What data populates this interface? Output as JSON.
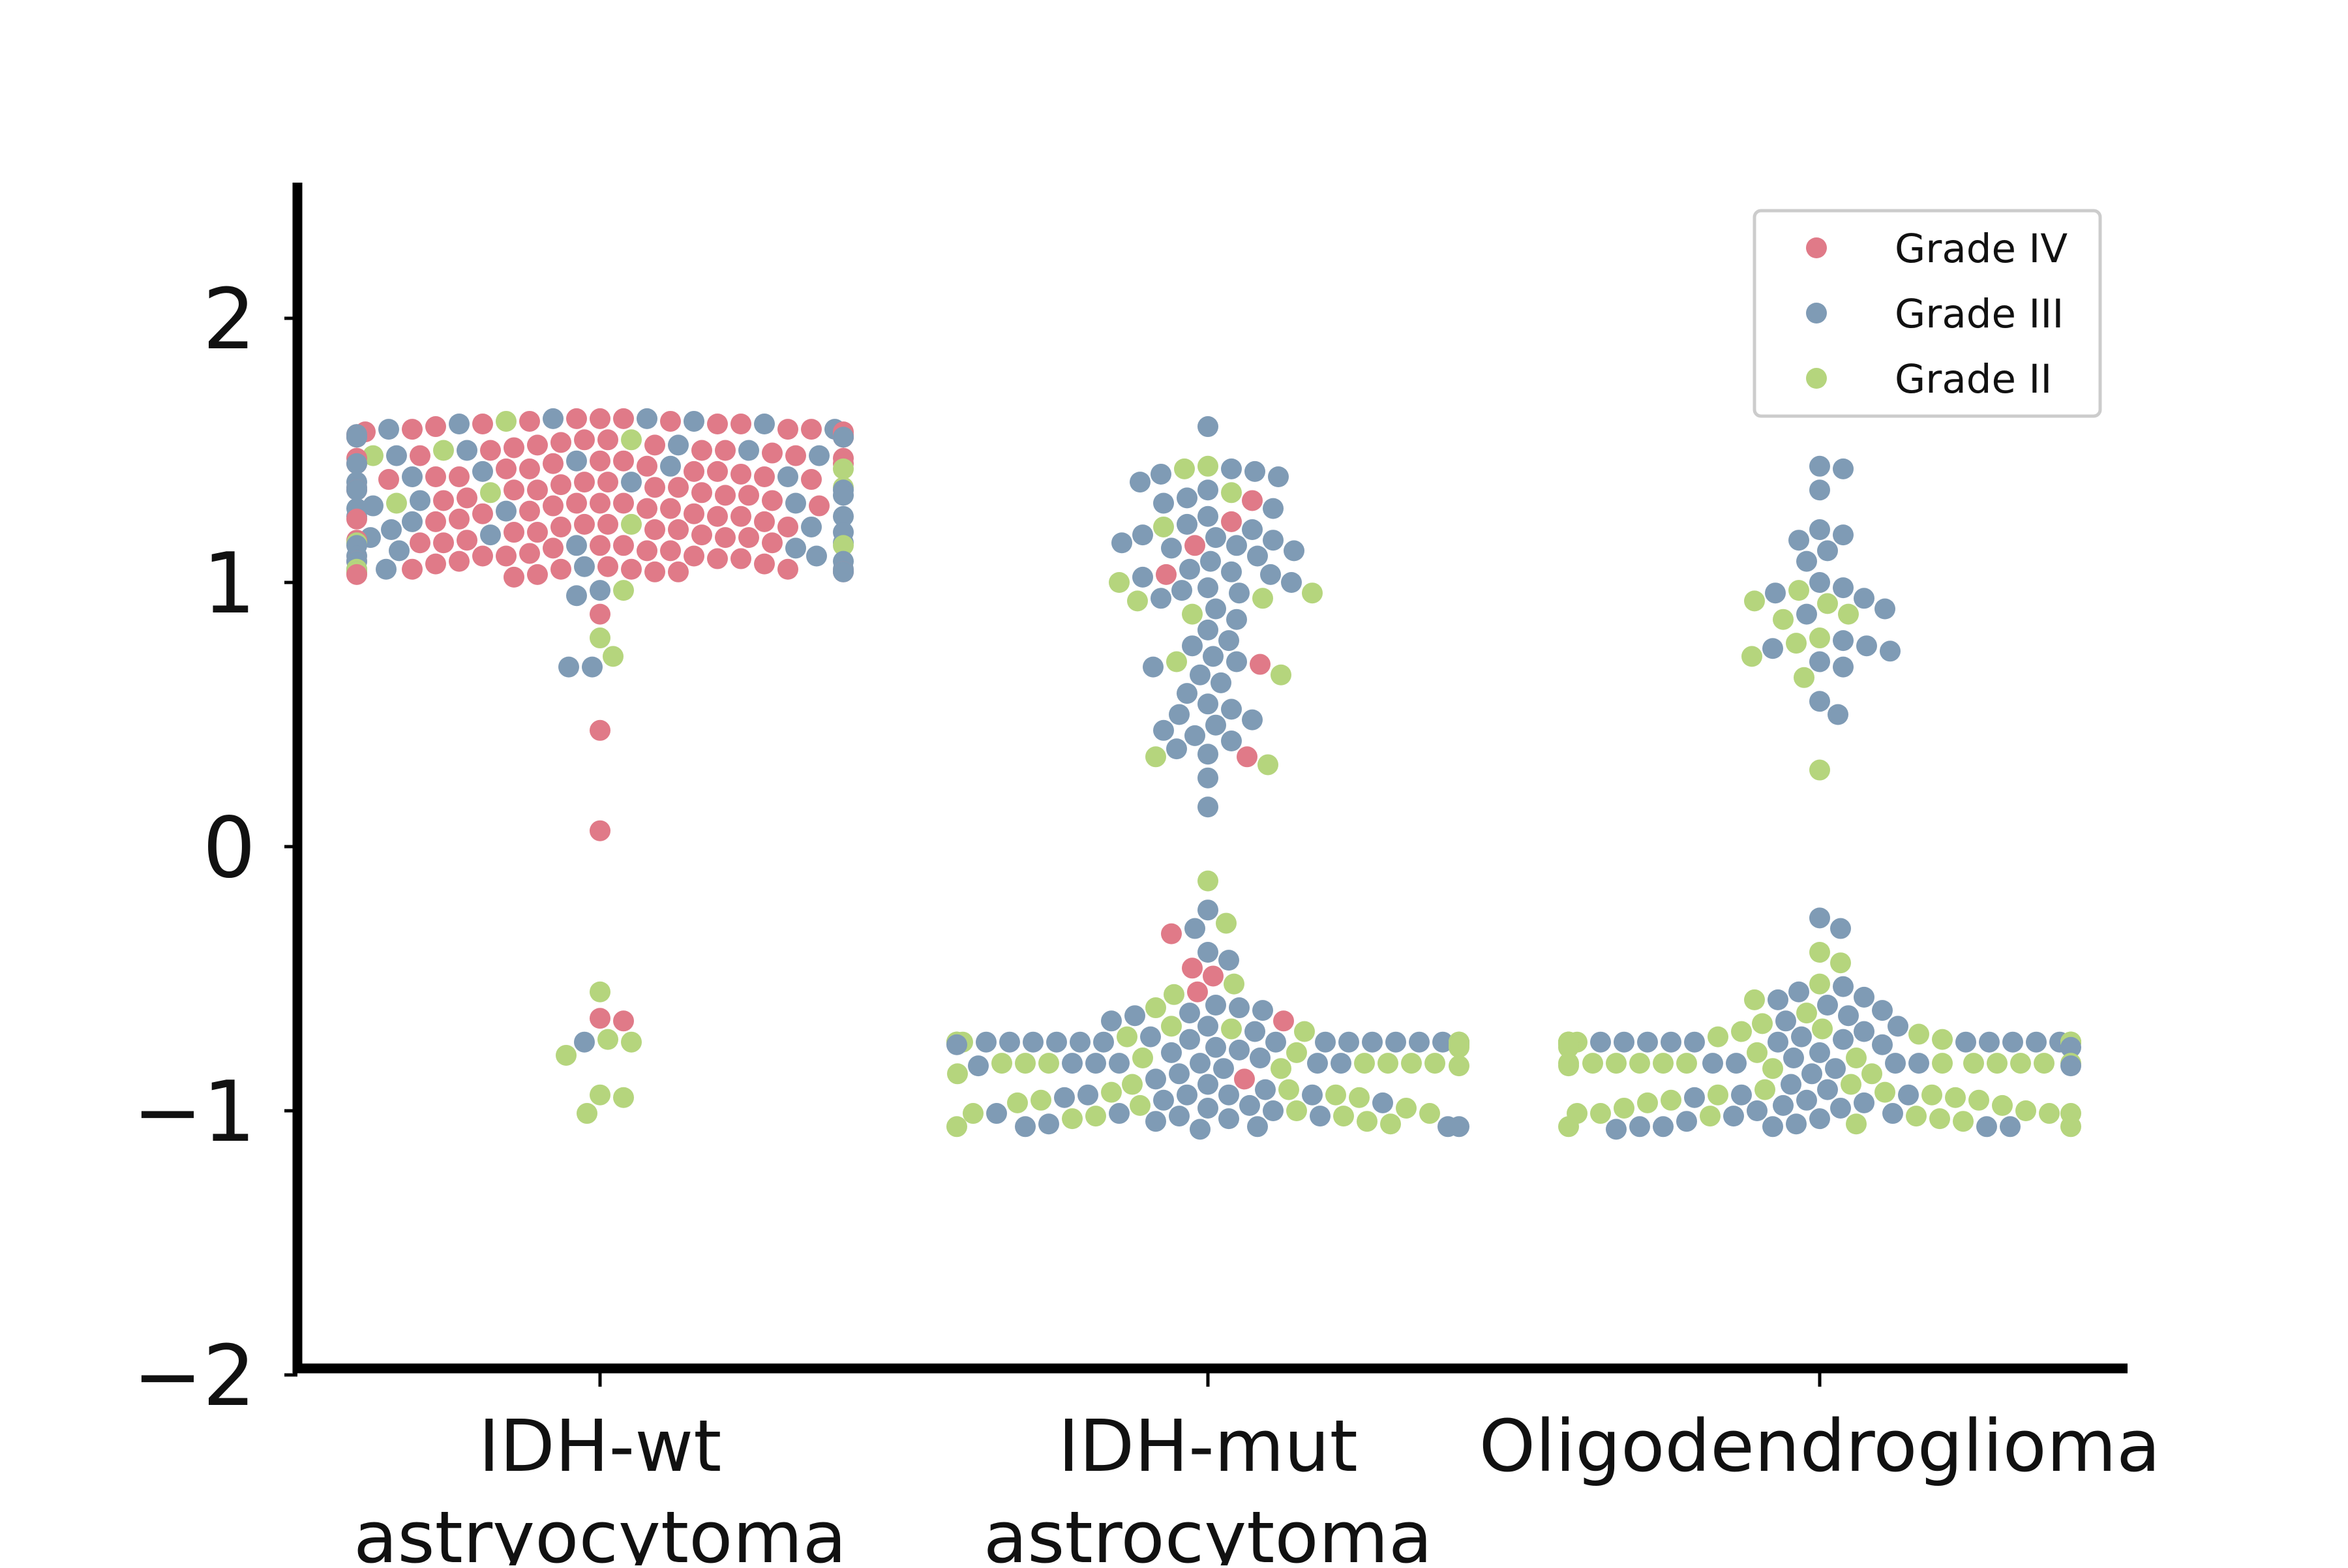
{
  "chart_data": {
    "type": "scatter",
    "subtype": "swarm",
    "title": "",
    "xlabel": "",
    "ylabel": "",
    "ylim": [
      -2,
      2.5
    ],
    "yticks": [
      -2,
      -1,
      0,
      1,
      2
    ],
    "ytick_labels": [
      "−2",
      "−1",
      "0",
      "1",
      "2"
    ],
    "categories": [
      {
        "line1": "IDH-wt",
        "line2": "astryocytoma"
      },
      {
        "line1": "IDH-mut",
        "line2": "astrocytoma"
      },
      {
        "line1": "Oligodendroglioma",
        "line2": ""
      }
    ],
    "legend_position": "top-right",
    "grid": false,
    "series": [
      {
        "name": "Grade IV",
        "color": "#e07a88",
        "groups": [
          {
            "category": 0,
            "values": [
              1.62,
              1.62,
              1.61,
              1.61,
              1.6,
              1.6,
              1.59,
              1.58,
              1.58,
              1.57,
              1.57,
              1.56,
              1.55,
              1.55,
              1.54,
              1.53,
              1.52,
              1.51,
              1.5,
              1.5,
              1.49,
              1.48,
              1.47,
              1.46,
              1.45,
              1.45,
              1.44,
              1.43,
              1.42,
              1.41,
              1.4,
              1.4,
              1.39,
              1.38,
              1.37,
              1.36,
              1.35,
              1.35,
              1.34,
              1.33,
              1.32,
              1.31,
              1.3,
              1.3,
              1.29,
              1.28,
              1.27,
              1.26,
              1.25,
              1.25,
              1.24,
              1.23,
              1.22,
              1.21,
              1.2,
              1.2,
              1.19,
              1.18,
              1.17,
              1.16,
              1.15,
              1.15,
              1.14,
              1.13,
              1.12,
              1.11,
              1.1,
              1.1,
              1.09,
              1.08,
              1.07,
              1.06,
              1.05,
              1.05,
              1.05,
              1.04,
              1.04,
              1.03,
              1.03,
              1.02,
              1.62,
              1.55,
              1.48,
              1.42,
              1.35,
              1.28,
              1.22,
              1.15,
              1.08,
              1.6,
              1.52,
              1.45,
              1.38,
              1.3,
              1.23,
              1.16,
              1.09,
              1.58,
              1.5,
              1.43,
              1.36,
              1.29,
              1.21,
              1.14,
              1.07,
              1.56,
              1.47,
              1.4,
              1.33,
              1.26,
              1.19,
              1.12,
              1.05,
              1.54,
              1.46,
              1.39,
              1.31,
              1.24,
              1.17,
              1.1,
              1.04,
              0.88,
              0.44,
              0.06,
              -0.65,
              -0.66
            ]
          },
          {
            "category": 1,
            "values": [
              1.31,
              1.23,
              1.14,
              1.03,
              0.69,
              0.34,
              -0.33,
              -0.46,
              -0.49,
              -0.55,
              -0.66,
              -0.88
            ]
          },
          {
            "category": 2,
            "values": []
          }
        ]
      },
      {
        "name": "Grade III",
        "color": "#7f9bb5",
        "groups": [
          {
            "category": 0,
            "values": [
              1.62,
              1.62,
              1.61,
              1.6,
              1.58,
              1.56,
              1.55,
              1.52,
              1.5,
              1.48,
              1.46,
              1.44,
              1.42,
              1.4,
              1.38,
              1.36,
              1.35,
              1.33,
              1.31,
              1.29,
              1.27,
              1.25,
              1.23,
              1.21,
              1.19,
              1.17,
              1.15,
              1.14,
              1.14,
              1.13,
              1.12,
              1.1,
              1.08,
              1.06,
              1.05,
              1.05,
              1.04,
              1.04,
              1.6,
              1.5,
              1.4,
              1.3,
              1.2,
              1.1,
              1.55,
              1.45,
              1.35,
              1.25,
              1.15,
              1.05,
              1.58,
              1.48,
              1.38,
              1.28,
              1.18,
              1.08,
              0.97,
              0.95,
              0.68,
              0.68,
              -0.74
            ]
          },
          {
            "category": 1,
            "values": [
              1.59,
              1.43,
              1.42,
              1.41,
              1.4,
              1.38,
              1.35,
              1.32,
              1.3,
              1.28,
              1.25,
              1.22,
              1.2,
              1.18,
              1.17,
              1.16,
              1.15,
              1.14,
              1.13,
              1.12,
              1.1,
              1.08,
              1.05,
              1.04,
              1.03,
              1.02,
              1.0,
              0.98,
              0.97,
              0.96,
              0.94,
              0.9,
              0.86,
              0.82,
              0.78,
              0.76,
              0.72,
              0.7,
              0.68,
              0.65,
              0.62,
              0.58,
              0.54,
              0.52,
              0.5,
              0.48,
              0.46,
              0.44,
              0.42,
              0.4,
              0.37,
              0.35,
              0.26,
              0.15,
              -0.24,
              -0.31,
              -0.4,
              -0.43,
              -0.6,
              -0.61,
              -0.62,
              -0.63,
              -0.64,
              -0.66,
              -0.68,
              -0.7,
              -0.72,
              -0.73,
              -0.74,
              -0.74,
              -0.74,
              -0.74,
              -0.74,
              -0.74,
              -0.74,
              -0.74,
              -0.74,
              -0.74,
              -0.74,
              -0.74,
              -0.74,
              -0.75,
              -0.75,
              -0.76,
              -0.77,
              -0.78,
              -0.8,
              -0.82,
              -0.82,
              -0.82,
              -0.82,
              -0.82,
              -0.82,
              -0.83,
              -0.84,
              -0.86,
              -0.88,
              -0.9,
              -0.92,
              -0.94,
              -0.94,
              -0.94,
              -0.94,
              -0.95,
              -0.96,
              -0.97,
              -0.98,
              -0.99,
              -1.0,
              -1.01,
              -1.01,
              -1.02,
              -1.02,
              -1.03,
              -1.04,
              -1.05,
              -1.06,
              -1.06,
              -1.06,
              -1.06,
              -1.07
            ]
          },
          {
            "category": 2,
            "values": [
              1.44,
              1.43,
              1.35,
              1.2,
              1.18,
              1.16,
              1.12,
              1.08,
              1.0,
              0.98,
              0.96,
              0.94,
              0.9,
              0.88,
              0.78,
              0.76,
              0.75,
              0.74,
              0.7,
              0.68,
              0.55,
              0.5,
              -0.27,
              -0.31,
              -0.53,
              -0.55,
              -0.57,
              -0.58,
              -0.6,
              -0.62,
              -0.64,
              -0.66,
              -0.68,
              -0.7,
              -0.72,
              -0.73,
              -0.74,
              -0.74,
              -0.74,
              -0.74,
              -0.74,
              -0.74,
              -0.74,
              -0.74,
              -0.74,
              -0.74,
              -0.74,
              -0.75,
              -0.76,
              -0.78,
              -0.8,
              -0.82,
              -0.82,
              -0.82,
              -0.82,
              -0.83,
              -0.84,
              -0.86,
              -0.9,
              -0.92,
              -0.94,
              -0.94,
              -0.95,
              -0.96,
              -0.97,
              -0.98,
              -0.99,
              -1.0,
              -1.01,
              -1.02,
              -1.03,
              -1.04,
              -1.05,
              -1.06,
              -1.06,
              -1.06,
              -1.06,
              -1.06,
              -1.07
            ]
          }
        ]
      },
      {
        "name": "Grade II",
        "color": "#b5d57d",
        "groups": [
          {
            "category": 0,
            "values": [
              1.61,
              1.54,
              1.5,
              1.48,
              1.43,
              1.36,
              1.34,
              1.3,
              1.22,
              1.15,
              1.14,
              1.05,
              1.04,
              0.97,
              0.79,
              0.72,
              -0.55,
              -0.73,
              -0.74,
              -0.79,
              -0.94,
              -0.95,
              -1.01
            ]
          },
          {
            "category": 1,
            "values": [
              1.44,
              1.43,
              1.34,
              1.21,
              1.0,
              0.96,
              0.94,
              0.93,
              0.88,
              0.7,
              0.65,
              0.34,
              0.31,
              -0.13,
              -0.29,
              -0.52,
              -0.56,
              -0.61,
              -0.68,
              -0.69,
              -0.7,
              -0.72,
              -0.74,
              -0.74,
              -0.74,
              -0.74,
              -0.74,
              -0.74,
              -0.74,
              -0.74,
              -0.74,
              -0.74,
              -0.74,
              -0.75,
              -0.76,
              -0.78,
              -0.8,
              -0.82,
              -0.82,
              -0.82,
              -0.82,
              -0.82,
              -0.82,
              -0.82,
              -0.83,
              -0.84,
              -0.86,
              -0.9,
              -0.92,
              -0.93,
              -0.94,
              -0.95,
              -0.96,
              -0.97,
              -0.98,
              -0.99,
              -1.0,
              -1.01,
              -1.01,
              -1.02,
              -1.02,
              -1.03,
              -1.04,
              -1.05,
              -1.06
            ]
          },
          {
            "category": 2,
            "values": [
              0.97,
              0.93,
              0.92,
              0.88,
              0.86,
              0.79,
              0.77,
              0.72,
              0.64,
              0.29,
              -0.4,
              -0.44,
              -0.52,
              -0.58,
              -0.63,
              -0.67,
              -0.69,
              -0.7,
              -0.71,
              -0.72,
              -0.73,
              -0.74,
              -0.74,
              -0.74,
              -0.74,
              -0.74,
              -0.74,
              -0.74,
              -0.74,
              -0.74,
              -0.74,
              -0.74,
              -0.74,
              -0.74,
              -0.74,
              -0.74,
              -0.74,
              -0.74,
              -0.75,
              -0.76,
              -0.78,
              -0.8,
              -0.82,
              -0.82,
              -0.82,
              -0.82,
              -0.82,
              -0.82,
              -0.82,
              -0.82,
              -0.82,
              -0.82,
              -0.82,
              -0.82,
              -0.83,
              -0.84,
              -0.86,
              -0.9,
              -0.92,
              -0.93,
              -0.94,
              -0.94,
              -0.95,
              -0.96,
              -0.96,
              -0.97,
              -0.98,
              -0.99,
              -1.0,
              -1.01,
              -1.01,
              -1.01,
              -1.01,
              -1.02,
              -1.02,
              -1.03,
              -1.04,
              -1.05,
              -1.06,
              -1.06
            ]
          }
        ]
      }
    ]
  }
}
